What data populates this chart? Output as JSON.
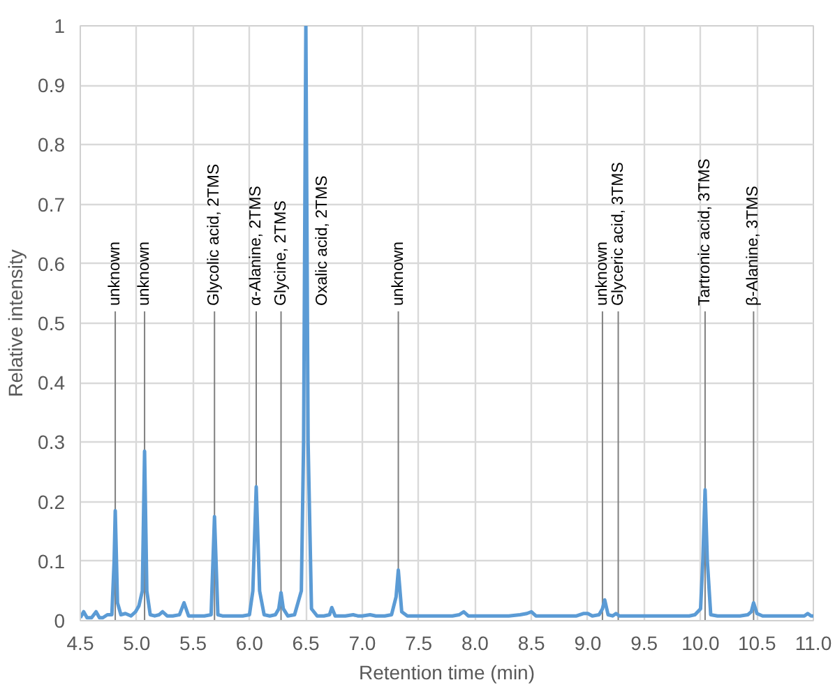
{
  "chart_data": {
    "type": "line",
    "xlabel": "Retention time (min)",
    "ylabel": "Relative intensity",
    "xlim": [
      4.5,
      11.0
    ],
    "ylim": [
      0,
      1
    ],
    "xticks": [
      4.5,
      {
        "value": 5,
        "label": "5.0"
      },
      5.5,
      {
        "value": 6,
        "label": "6.0"
      },
      6.5,
      {
        "value": 7,
        "label": "7.0"
      },
      7.5,
      {
        "value": 8,
        "label": "8.0"
      },
      8.5,
      {
        "value": 9,
        "label": "9.0"
      },
      9.5,
      {
        "value": 10,
        "label": "10.0"
      },
      10.5,
      {
        "value": 11,
        "label": "11.0"
      }
    ],
    "yticks": [
      0,
      0.1,
      0.2,
      0.3,
      0.4,
      0.5,
      0.6,
      0.7,
      0.8,
      0.9,
      1
    ],
    "grid": true,
    "marker": "none",
    "line_style": "solid",
    "series": [
      {
        "color": "#5b9bd5",
        "x": [
          4.5,
          4.53,
          4.56,
          4.6,
          4.64,
          4.67,
          4.7,
          4.74,
          4.78,
          4.8,
          4.81,
          4.83,
          4.86,
          4.9,
          4.95,
          4.99,
          5.02,
          5.05,
          5.07,
          5.09,
          5.12,
          5.16,
          5.2,
          5.23,
          5.27,
          5.32,
          5.38,
          5.42,
          5.46,
          5.5,
          5.55,
          5.6,
          5.66,
          5.69,
          5.72,
          5.76,
          5.82,
          5.88,
          5.94,
          6.0,
          6.03,
          6.06,
          6.09,
          6.13,
          6.18,
          6.23,
          6.26,
          6.28,
          6.3,
          6.34,
          6.4,
          6.46,
          6.48,
          6.5,
          6.52,
          6.55,
          6.6,
          6.66,
          6.71,
          6.73,
          6.76,
          6.85,
          6.92,
          6.96,
          7.0,
          7.07,
          7.12,
          7.2,
          7.26,
          7.3,
          7.32,
          7.35,
          7.4,
          7.5,
          7.6,
          7.7,
          7.8,
          7.86,
          7.9,
          7.94,
          8.0,
          8.1,
          8.2,
          8.3,
          8.4,
          8.46,
          8.5,
          8.54,
          8.6,
          8.7,
          8.8,
          8.9,
          8.96,
          9.0,
          9.04,
          9.1,
          9.13,
          9.15,
          9.18,
          9.22,
          9.25,
          9.28,
          9.35,
          9.5,
          9.6,
          9.7,
          9.8,
          9.9,
          9.95,
          10.0,
          10.02,
          10.04,
          10.06,
          10.09,
          10.15,
          10.25,
          10.35,
          10.42,
          10.45,
          10.47,
          10.5,
          10.55,
          10.7,
          10.85,
          10.92,
          10.95,
          10.98,
          11.0
        ],
        "values": [
          0.005,
          0.015,
          0.005,
          0.005,
          0.015,
          0.005,
          0.005,
          0.01,
          0.01,
          0.1,
          0.185,
          0.03,
          0.01,
          0.012,
          0.008,
          0.015,
          0.025,
          0.05,
          0.285,
          0.05,
          0.01,
          0.008,
          0.01,
          0.015,
          0.008,
          0.008,
          0.01,
          0.03,
          0.008,
          0.008,
          0.008,
          0.008,
          0.01,
          0.175,
          0.01,
          0.008,
          0.008,
          0.008,
          0.008,
          0.01,
          0.05,
          0.225,
          0.05,
          0.01,
          0.008,
          0.01,
          0.02,
          0.047,
          0.02,
          0.008,
          0.01,
          0.05,
          0.3,
          1.0,
          0.3,
          0.02,
          0.008,
          0.008,
          0.01,
          0.022,
          0.008,
          0.008,
          0.01,
          0.008,
          0.008,
          0.01,
          0.008,
          0.008,
          0.01,
          0.04,
          0.085,
          0.015,
          0.008,
          0.008,
          0.008,
          0.008,
          0.008,
          0.01,
          0.015,
          0.008,
          0.008,
          0.008,
          0.008,
          0.008,
          0.01,
          0.012,
          0.015,
          0.008,
          0.008,
          0.008,
          0.008,
          0.008,
          0.012,
          0.012,
          0.008,
          0.01,
          0.02,
          0.035,
          0.01,
          0.008,
          0.012,
          0.008,
          0.008,
          0.008,
          0.008,
          0.008,
          0.008,
          0.008,
          0.01,
          0.02,
          0.1,
          0.22,
          0.1,
          0.01,
          0.008,
          0.008,
          0.008,
          0.01,
          0.015,
          0.03,
          0.012,
          0.008,
          0.008,
          0.008,
          0.008,
          0.012,
          0.008,
          0.008
        ]
      }
    ],
    "annotations": [
      {
        "text": "unknown",
        "x": 4.81,
        "y": 0
      },
      {
        "text": "unknown",
        "x": 5.07,
        "y": 0
      },
      {
        "text": "Glycolic acid, 2TMS",
        "x": 5.69,
        "y": 0
      },
      {
        "text": "α-Alanine, 2TMS",
        "x": 6.06,
        "y": 0.225
      },
      {
        "text": "Glycine, 2TMS",
        "x": 6.28,
        "y": 0
      },
      "Oxalic acid, 2TMS",
      {
        "text": "unknown",
        "x": 7.32,
        "y": 0.085
      },
      {
        "text": "unknown",
        "x": 9.13,
        "y": 0
      },
      {
        "text": "Glyceric acid, 3TMS",
        "x": 9.27,
        "y": 0
      },
      {
        "text": "Tartronic acid, 3TMS",
        "x": 10.04,
        "y": 0
      },
      {
        "text": "β-Alanine, 3TMS",
        "x": 10.47,
        "y": 0
      }
    ]
  }
}
